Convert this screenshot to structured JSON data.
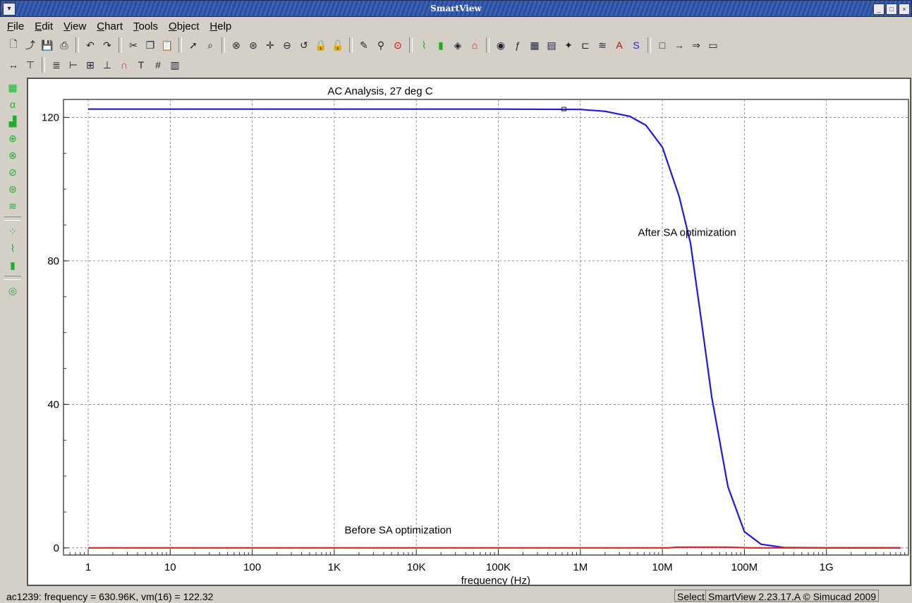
{
  "window": {
    "title": "SmartView",
    "controls": [
      "_",
      "□",
      "×"
    ]
  },
  "menu": [
    {
      "label": "File",
      "key": "F",
      "rest": "ile"
    },
    {
      "label": "Edit",
      "key": "E",
      "rest": "dit"
    },
    {
      "label": "View",
      "key": "V",
      "rest": "iew"
    },
    {
      "label": "Chart",
      "key": "C",
      "rest": "hart"
    },
    {
      "label": "Tools",
      "key": "T",
      "rest": "ools"
    },
    {
      "label": "Object",
      "key": "O",
      "rest": "bject"
    },
    {
      "label": "Help",
      "key": "H",
      "rest": "elp"
    }
  ],
  "toolbar1": [
    "new-icon",
    "open-icon",
    "save-icon",
    "print-icon",
    "|",
    "undo-icon",
    "redo-icon",
    "|",
    "cut-icon",
    "copy-icon",
    "paste-icon",
    "|",
    "pointer-icon",
    "zoom-box-icon",
    "|",
    "zoom-x-icon",
    "zoom-y-icon",
    "pan-icon",
    "zoom-out-icon",
    "zoom-reset-icon",
    "lock-x-icon",
    "lock-y-icon",
    "|",
    "edit-icon",
    "measure-icon",
    "help-icon",
    "|",
    "line-chart-icon",
    "bar-icon",
    "marker-icon",
    "surface-icon",
    "|",
    "eye-icon",
    "fft-icon",
    "calc-icon",
    "table-icon",
    "color-icon",
    "ic-icon",
    "waveform-icon",
    "text-ad-icon",
    "s-s-icon",
    "|",
    "rect-icon",
    "arrow-icon",
    "arrow2-icon",
    "label-icon"
  ],
  "toolbar2": [
    "ruler-icon",
    "marker-t-icon",
    "|",
    "legend-icon",
    "axis-x-icon",
    "axis-xy-icon",
    "axis-y-icon",
    "curve-icon",
    "text-icon",
    "grid-icon",
    "table-grid-icon"
  ],
  "lefttools": [
    "grid-tool-icon",
    "alpha-tool-icon",
    "histogram-tool-icon",
    "polar-tool-icon",
    "smith-tool-icon",
    "smith2-tool-icon",
    "smith3-tool-icon",
    "waveform-tool-icon",
    "|",
    "scatter-tool-icon",
    "line-tool-icon",
    "bar-tool-icon",
    "|",
    "contour-tool-icon"
  ],
  "chart_data": {
    "type": "line",
    "title": "AC Analysis, 27 deg C",
    "xlabel": "frequency (Hz)",
    "ylabel": "",
    "xscale": "log",
    "xlim": [
      0.5,
      10000000000
    ],
    "ylim": [
      -2,
      125
    ],
    "x_ticks": [
      {
        "value": 1,
        "label": "1"
      },
      {
        "value": 10,
        "label": "10"
      },
      {
        "value": 100,
        "label": "100"
      },
      {
        "value": 1000,
        "label": "1K"
      },
      {
        "value": 10000,
        "label": "10K"
      },
      {
        "value": 100000,
        "label": "100K"
      },
      {
        "value": 1000000,
        "label": "1M"
      },
      {
        "value": 10000000,
        "label": "10M"
      },
      {
        "value": 100000000,
        "label": "100M"
      },
      {
        "value": 1000000000,
        "label": "1G"
      }
    ],
    "y_ticks": [
      0,
      40,
      80,
      120
    ],
    "grid": true,
    "series": [
      {
        "color": "#1a1ae0",
        "points": [
          [
            1,
            122.3
          ],
          [
            1000,
            122.3
          ],
          [
            100000,
            122.3
          ],
          [
            1000000,
            122.2
          ],
          [
            2000000,
            121.7
          ],
          [
            4000000,
            120.3
          ],
          [
            6300000,
            117.8
          ],
          [
            10000000,
            111.7
          ],
          [
            16000000,
            98
          ],
          [
            22000000,
            85
          ],
          [
            30000000,
            63
          ],
          [
            40000000,
            42
          ],
          [
            63000000,
            17
          ],
          [
            100000000,
            4.5
          ],
          [
            160000000,
            1
          ],
          [
            300000000,
            0.1
          ],
          [
            1000000000,
            0
          ],
          [
            8000000000,
            0
          ]
        ]
      },
      {
        "color": "#e02020",
        "points": [
          [
            1,
            0
          ],
          [
            12000000,
            0
          ],
          [
            15000000,
            0.2
          ],
          [
            60000000,
            0.2
          ],
          [
            120000000,
            0
          ],
          [
            8000000000,
            0
          ]
        ]
      }
    ],
    "annotations": [
      {
        "text": "After SA optimization",
        "x": 20000000,
        "y": 87
      },
      {
        "text": "Before SA optimization",
        "x": 6000,
        "y": 4
      }
    ],
    "cursor": {
      "x": 630960,
      "y": 122.32
    }
  },
  "status": {
    "readout": "ac1239:   frequency = 630.96K, vm(16) = 122.32",
    "mode": "Select",
    "version": "SmartView 2.23.17.A © Simucad 2009"
  }
}
